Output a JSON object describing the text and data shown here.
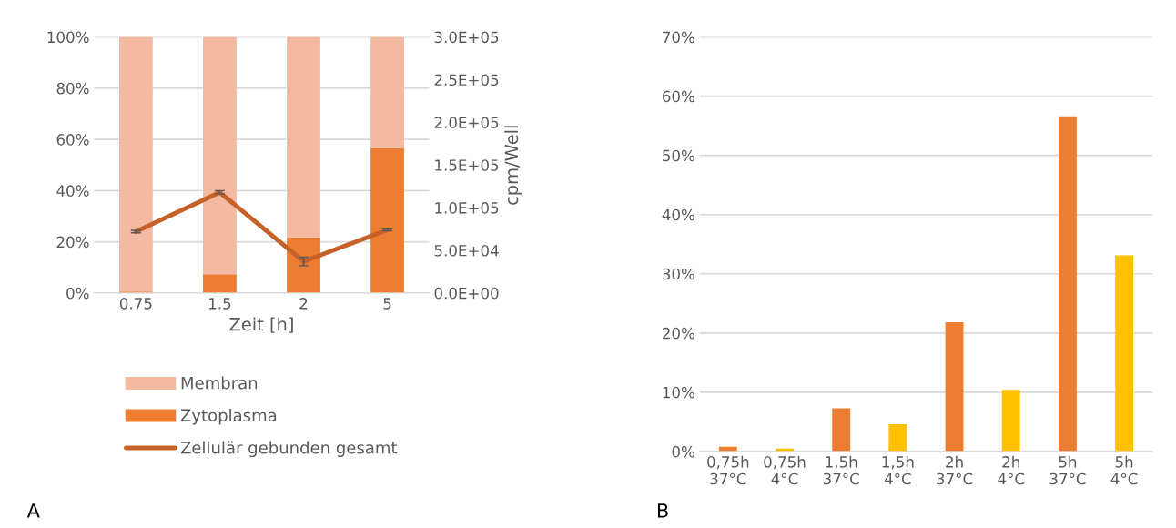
{
  "chart_data": [
    {
      "type": "bar",
      "stacked": true,
      "categories": [
        "0.75",
        "1.5",
        "2",
        "5"
      ],
      "xlabel": "Zeit [h]",
      "y2label": "cpm/Well",
      "series": [
        {
          "name": "Zytoplasma",
          "color": "#ed7d31",
          "values": [
            0.6,
            7.3,
            21.7,
            56.6
          ]
        },
        {
          "name": "Membran",
          "color": "#f4b9a1",
          "values": [
            99.4,
            92.7,
            78.3,
            43.4
          ]
        },
        {
          "name": "Zellulär gebunden gesamt",
          "type": "line",
          "axis": "y2",
          "color": "#c5622a",
          "values": [
            72000,
            118000,
            37000,
            74000
          ],
          "errors": [
            1500,
            2000,
            5000,
            1000
          ]
        }
      ],
      "ylim": [
        0,
        100
      ],
      "yticks": [
        {
          "value": 0,
          "label": "0%"
        },
        {
          "value": 20,
          "label": "20%"
        },
        {
          "value": 40,
          "label": "40%"
        },
        {
          "value": 60,
          "label": "60%"
        },
        {
          "value": 80,
          "label": "80%"
        },
        {
          "value": 100,
          "label": "100%"
        }
      ],
      "y2lim": [
        0,
        300000
      ],
      "y2ticks": [
        {
          "value": 0,
          "label": "0.0E+00"
        },
        {
          "value": 50000,
          "label": "5.0E+04"
        },
        {
          "value": 100000,
          "label": "1.0E+05"
        },
        {
          "value": 150000,
          "label": "1.5E+05"
        },
        {
          "value": 200000,
          "label": "2.0E+05"
        },
        {
          "value": 250000,
          "label": "2.5E+05"
        },
        {
          "value": 300000,
          "label": "3.0E+05"
        }
      ],
      "grid": "y",
      "legend": "bottom",
      "annotations": [
        "A"
      ]
    },
    {
      "type": "bar",
      "categories": [
        "0,75h\n37°C",
        "0,75h\n4°C",
        "1,5h\n37°C",
        "1,5h\n4°C",
        "2h\n37°C",
        "2h\n4°C",
        "5h\n37°C",
        "5h\n4°C"
      ],
      "values": [
        0.8,
        0.5,
        7.3,
        4.6,
        21.8,
        10.4,
        56.6,
        33.1
      ],
      "colors": [
        "#ed7d31",
        "#ffc000",
        "#ed7d31",
        "#ffc000",
        "#ed7d31",
        "#ffc000",
        "#ed7d31",
        "#ffc000"
      ],
      "ylim": [
        0,
        70
      ],
      "yticks": [
        {
          "value": 0,
          "label": "0%"
        },
        {
          "value": 10,
          "label": "10%"
        },
        {
          "value": 20,
          "label": "20%"
        },
        {
          "value": 30,
          "label": "30%"
        },
        {
          "value": 40,
          "label": "40%"
        },
        {
          "value": 50,
          "label": "50%"
        },
        {
          "value": 60,
          "label": "60%"
        },
        {
          "value": 70,
          "label": "70%"
        }
      ],
      "grid": "y",
      "annotations": [
        "B"
      ]
    }
  ]
}
